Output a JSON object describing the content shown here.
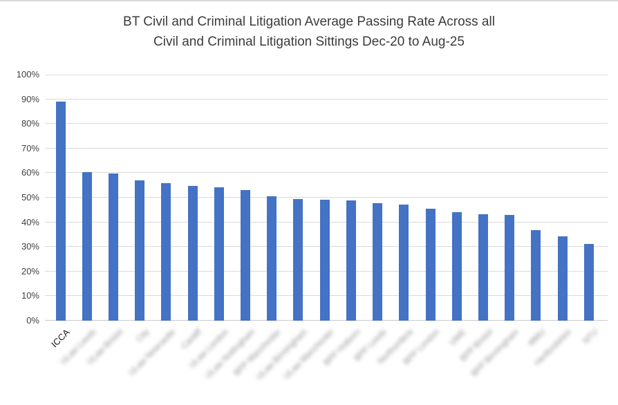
{
  "window": {
    "background_color": "#ffffff",
    "top_border_color": "#d9d9d9"
  },
  "chart_data": {
    "type": "bar",
    "title": "BT Civil and Criminal Litigation Average Passing Rate Across all Civil and Criminal Litigation Sittings Dec-20 to Aug-25",
    "title_lines": [
      "BT Civil and Criminal Litigation Average Passing Rate Across all",
      "Civil and Criminal Litigation Sittings Dec-20 to Aug-25"
    ],
    "categories": [
      "ICCA",
      "ULaw Leeds",
      "ULaw Bristol",
      "City",
      "ULaw Newcastle",
      "Cardiff",
      "ULaw London",
      "ULaw Nottingham",
      "BPP Manchester",
      "ULaw Birmingham",
      "ULaw Manchester",
      "BPP Holborn",
      "BPP Leeds",
      "Northumbria",
      "BPP London",
      "UWE",
      "BPP Bristol",
      "BPP Birmingham",
      "MMU",
      "Hertfordshire",
      "NTU"
    ],
    "categories_blurred": [
      false,
      true,
      true,
      true,
      true,
      true,
      true,
      true,
      true,
      true,
      true,
      true,
      true,
      true,
      true,
      true,
      true,
      true,
      true,
      true,
      true
    ],
    "note": "All x-axis category labels except ICCA are blurred/illegible in the source image; blurred label strings are placeholders rendered with a blur effect.",
    "values": [
      89.0,
      60.4,
      59.7,
      57.1,
      55.8,
      54.8,
      54.2,
      53.1,
      50.5,
      49.4,
      49.2,
      48.9,
      47.7,
      47.2,
      45.5,
      44.2,
      43.3,
      42.9,
      36.8,
      34.3,
      31.1
    ],
    "xlabel": "",
    "ylabel": "",
    "ylim": [
      0,
      100
    ],
    "ytick_step": 10,
    "ytick_labels": [
      "0%",
      "10%",
      "20%",
      "30%",
      "40%",
      "50%",
      "60%",
      "70%",
      "80%",
      "90%",
      "100%"
    ],
    "grid": true,
    "legend": "none",
    "bar_color": "#4472C4",
    "gridline_color": "#d9d9d9",
    "axis_line_color": "#c9c9c9",
    "title_color": "#3b3b3b",
    "tick_label_color": "#404040"
  }
}
